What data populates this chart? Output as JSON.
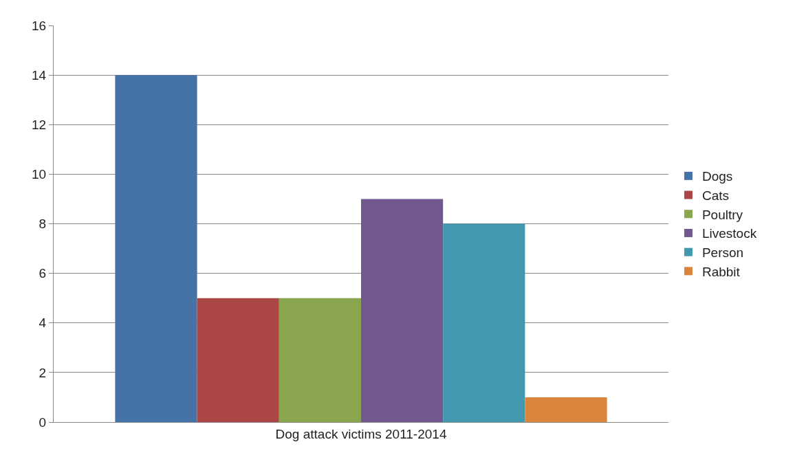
{
  "chart_data": {
    "type": "bar",
    "categories": [
      "Dog attack victims 2011-2014"
    ],
    "series": [
      {
        "name": "Dogs",
        "color": "#4572a7",
        "values": [
          14
        ]
      },
      {
        "name": "Cats",
        "color": "#aa4643",
        "values": [
          5
        ]
      },
      {
        "name": "Poultry",
        "color": "#89a54e",
        "values": [
          5
        ]
      },
      {
        "name": "Livestock",
        "color": "#71588f",
        "values": [
          9
        ]
      },
      {
        "name": "Person",
        "color": "#4198af",
        "values": [
          8
        ]
      },
      {
        "name": "Rabbit",
        "color": "#db843d",
        "values": [
          1
        ]
      }
    ],
    "ylim": [
      0,
      16
    ],
    "yticks": [
      0,
      2,
      4,
      6,
      8,
      10,
      12,
      14,
      16
    ],
    "grid": "y",
    "legend": "right"
  }
}
